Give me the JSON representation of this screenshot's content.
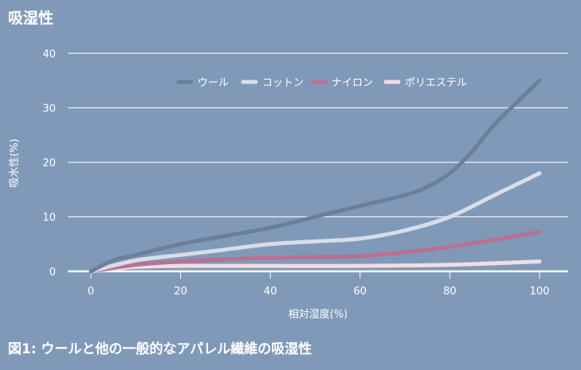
{
  "header": {
    "title": "吸湿性"
  },
  "caption": "図1: ウールと他の一般的なアパレル繊維の吸湿性",
  "colors": {
    "background": "#8099b9",
    "grid": "#ffffff"
  },
  "chart_data": {
    "type": "line",
    "xlabel": "相対湿度(%)",
    "ylabel": "吸水性(%)",
    "xlim": [
      0,
      100
    ],
    "ylim": [
      0,
      40
    ],
    "xticks": [
      "0",
      "20",
      "40",
      "60",
      "80",
      "100"
    ],
    "yticks": [
      "0",
      "10",
      "20",
      "30",
      "40"
    ],
    "grid": "horizontal",
    "legend": "top-center",
    "series": [
      {
        "name": "ウール",
        "color": "#6a7f9c",
        "x": [
          0,
          5,
          10,
          20,
          30,
          40,
          50,
          60,
          70,
          75,
          80,
          85,
          90,
          100
        ],
        "y": [
          0,
          2,
          3,
          5,
          6.5,
          8,
          10,
          12,
          14,
          15.5,
          18,
          22,
          27,
          35
        ]
      },
      {
        "name": "コットン",
        "color": "#d8dde8",
        "x": [
          0,
          10,
          20,
          30,
          40,
          50,
          60,
          70,
          80,
          90,
          100
        ],
        "y": [
          0,
          2,
          3,
          4,
          5,
          5.5,
          6,
          7.5,
          10,
          14,
          18
        ]
      },
      {
        "name": "ナイロン",
        "color": "#b87191",
        "x": [
          0,
          10,
          20,
          30,
          40,
          50,
          60,
          70,
          80,
          90,
          100
        ],
        "y": [
          0,
          1.2,
          1.8,
          2.2,
          2.5,
          2.6,
          2.8,
          3.5,
          4.5,
          5.8,
          7.2
        ]
      },
      {
        "name": "ポリエステル",
        "color": "#f0dde5",
        "x": [
          0,
          10,
          20,
          40,
          60,
          80,
          100
        ],
        "y": [
          0,
          0.8,
          1,
          1,
          1,
          1.2,
          1.8
        ]
      }
    ]
  }
}
